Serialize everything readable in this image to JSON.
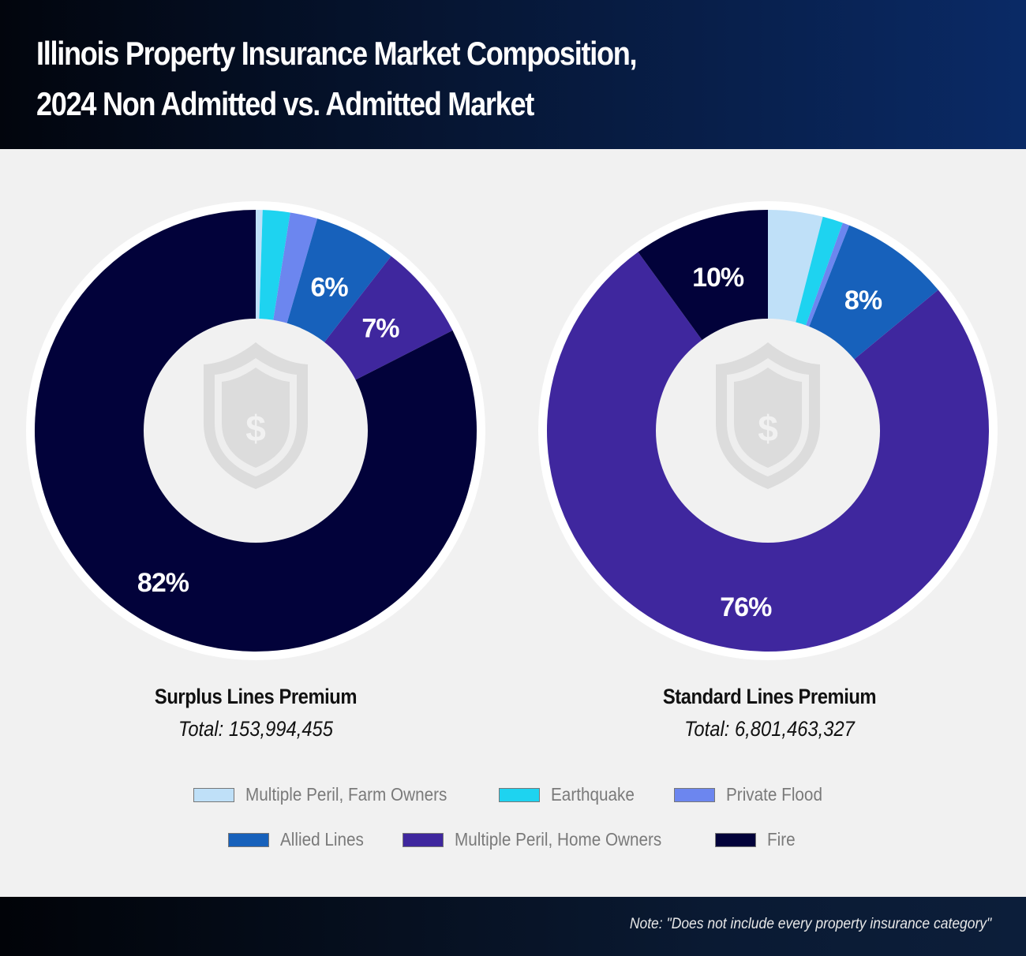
{
  "header": {
    "title_line1": "Illinois Property Insurance Market Composition,",
    "title_line2": "2024 Non Admitted vs. Admitted Market"
  },
  "colors": {
    "Multiple Peril, Farm Owners": "#bfe0f8",
    "Earthquake": "#1ed3f0",
    "Private Flood": "#6c86ef",
    "Allied Lines": "#1761bb",
    "Multiple Peril, Home Owners": "#3f279e",
    "Fire": "#02023a"
  },
  "chart_data": [
    {
      "type": "pie",
      "variant": "donut",
      "title": "Surplus Lines Premium",
      "subtitle": "Total: 153,994,455",
      "categories": [
        "Multiple Peril, Farm Owners",
        "Earthquake",
        "Private Flood",
        "Allied Lines",
        "Multiple Peril, Home Owners",
        "Fire"
      ],
      "values": [
        0.5,
        2,
        2,
        6,
        7,
        82.5
      ],
      "data_labels": [
        "",
        "",
        "",
        "6%",
        "7%",
        "82%"
      ],
      "center_icon": "shield-dollar-icon"
    },
    {
      "type": "pie",
      "variant": "donut",
      "title": "Standard Lines Premium",
      "subtitle": "Total: 6,801,463,327",
      "categories": [
        "Multiple Peril, Farm Owners",
        "Earthquake",
        "Private Flood",
        "Allied Lines",
        "Multiple Peril, Home Owners",
        "Fire"
      ],
      "values": [
        4,
        1.5,
        0.5,
        8,
        76,
        10
      ],
      "data_labels": [
        "",
        "",
        "",
        "8%",
        "76%",
        "10%"
      ],
      "center_icon": "shield-dollar-icon"
    }
  ],
  "legend": {
    "placement": "bottom",
    "row1": [
      "Multiple Peril, Farm Owners",
      "Earthquake",
      "Private Flood"
    ],
    "row2": [
      "Allied Lines",
      "Multiple Peril, Home Owners",
      "Fire"
    ]
  },
  "footer": {
    "note": "Note: \"Does not include every property insurance category\""
  }
}
